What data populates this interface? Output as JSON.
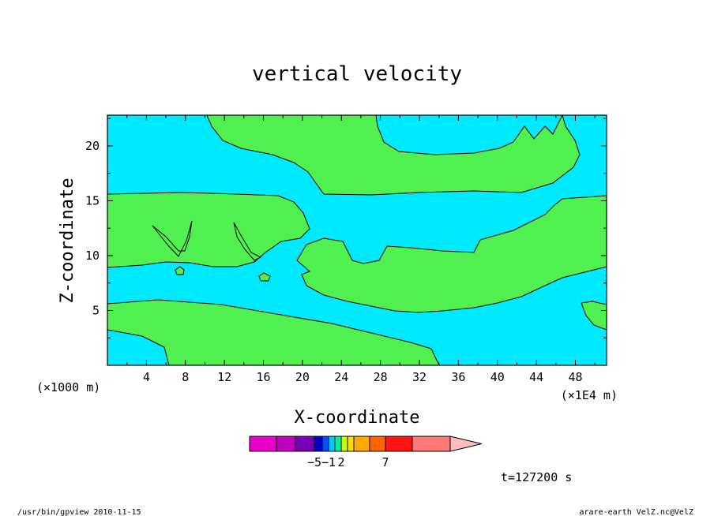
{
  "chart_data": {
    "type": "contour",
    "title": "vertical velocity",
    "xlabel": "X-coordinate",
    "ylabel": "Z-coordinate",
    "x_unit_left": "(×1000 m)",
    "x_unit_right": "(×1E4 m)",
    "xlim": [
      0,
      51.2
    ],
    "ylim": [
      0,
      22.8
    ],
    "x_ticks": [
      4,
      8,
      12,
      16,
      20,
      24,
      28,
      32,
      36,
      40,
      44,
      48
    ],
    "y_ticks": [
      5,
      10,
      15,
      20
    ],
    "fill_colors": {
      "negative": "#00eaff",
      "positive": "#50f050"
    },
    "colorbar": {
      "colors": [
        "#e600c8",
        "#be00be",
        "#7800b4",
        "#0000c8",
        "#0050ff",
        "#00c8ff",
        "#00f0a0",
        "#c8ff00",
        "#ffdc00",
        "#ffaa00",
        "#ff6400",
        "#ff1414",
        "#ff7878",
        "#ffbebe"
      ],
      "labels": [
        {
          "text": "−5",
          "slot": 2
        },
        {
          "text": "−1",
          "slot": 4
        },
        {
          "text": "2",
          "slot": 6
        },
        {
          "text": "7",
          "slot": 10
        }
      ]
    },
    "time_label": "t=127200 s"
  },
  "footer": {
    "left": "/usr/bin/gpview  2010-11-15",
    "right": "arare-earth_VelZ.nc@VelZ"
  }
}
